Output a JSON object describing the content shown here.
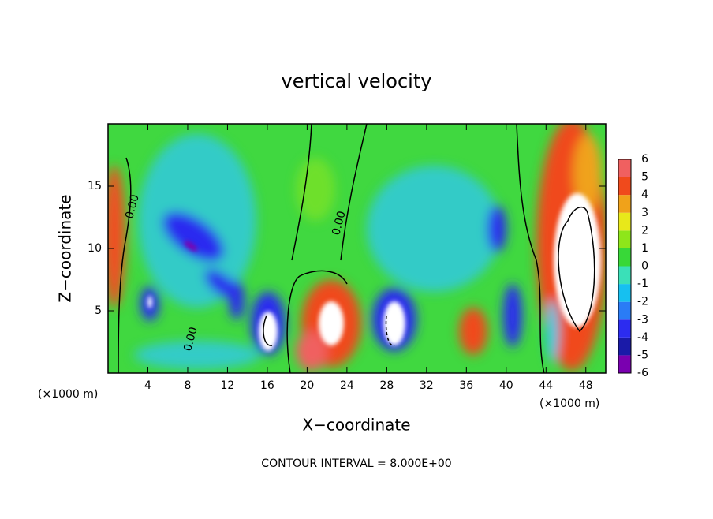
{
  "chart_data": {
    "type": "contour",
    "title": "vertical velocity",
    "xlabel": "X−coordinate",
    "ylabel": "Z−coordinate",
    "unit_label": "(×1000 m)",
    "xlim": [
      0,
      50
    ],
    "ylim": [
      0,
      20
    ],
    "xticks": [
      4,
      8,
      12,
      16,
      20,
      24,
      28,
      32,
      36,
      40,
      44,
      48
    ],
    "yticks": [
      5,
      10,
      15
    ],
    "contour_label": "0.00",
    "footer": "CONTOUR INTERVAL = 8.000E+00",
    "colorbar": {
      "levels": [
        -6,
        -5,
        -4,
        -3,
        -2,
        -1,
        0,
        1,
        2,
        3,
        4,
        5,
        6
      ],
      "colors": [
        "#7a00b0",
        "#1a1aa8",
        "#2c2cf0",
        "#2a7cf6",
        "#16c0f0",
        "#3ae0b8",
        "#38d838",
        "#8ee61a",
        "#e8e81a",
        "#f0a21a",
        "#f04a1c",
        "#f06060"
      ]
    }
  }
}
